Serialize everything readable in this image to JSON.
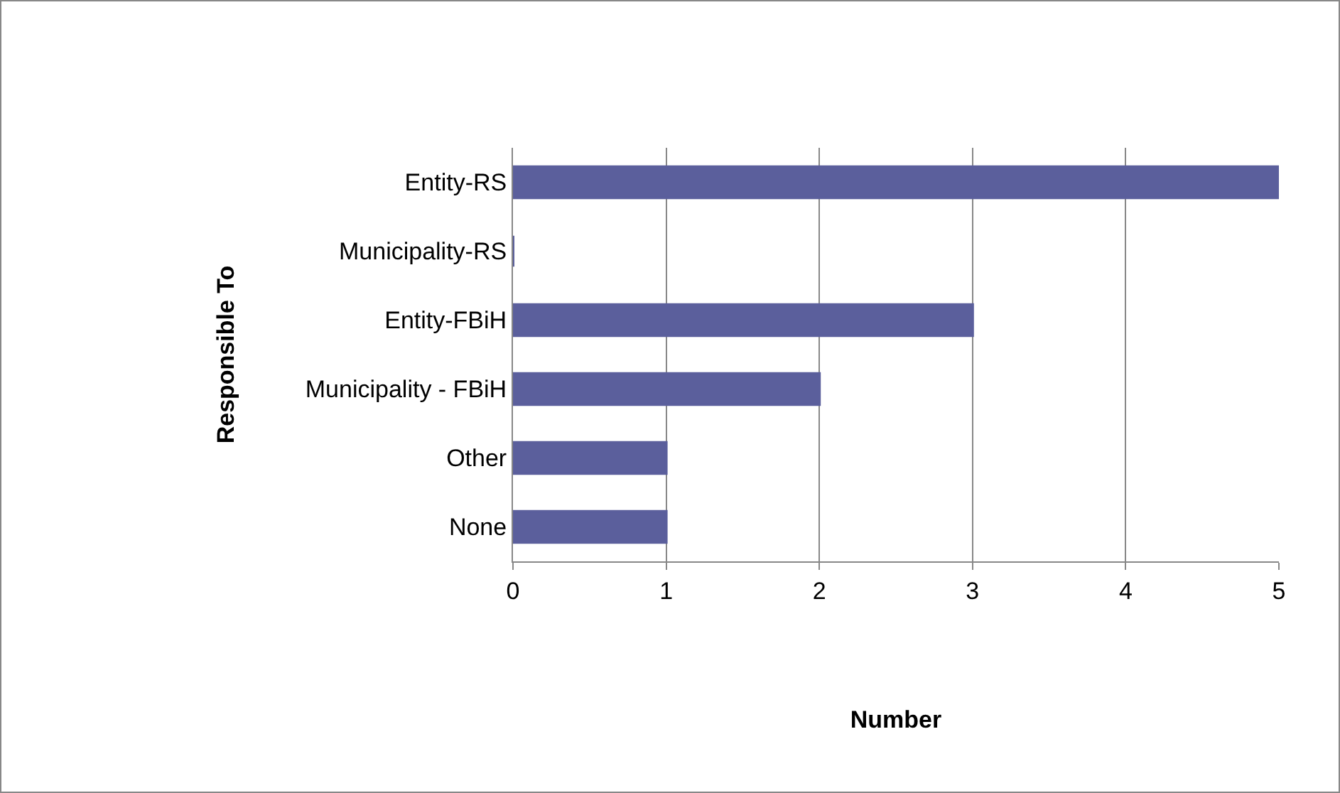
{
  "chart_data": {
    "type": "bar",
    "orientation": "horizontal",
    "xlabel": "Number",
    "ylabel": "Responsible To",
    "categories": [
      "Entity-RS",
      "Municipality-RS",
      "Entity-FBiH",
      "Municipality - FBiH",
      "Other",
      "None"
    ],
    "values": [
      5,
      0,
      3,
      2,
      1,
      1
    ],
    "color": "#5b5f9c",
    "xlim": [
      0,
      5
    ],
    "xticks": [
      0,
      1,
      2,
      3,
      4,
      5
    ],
    "grid": "x"
  }
}
